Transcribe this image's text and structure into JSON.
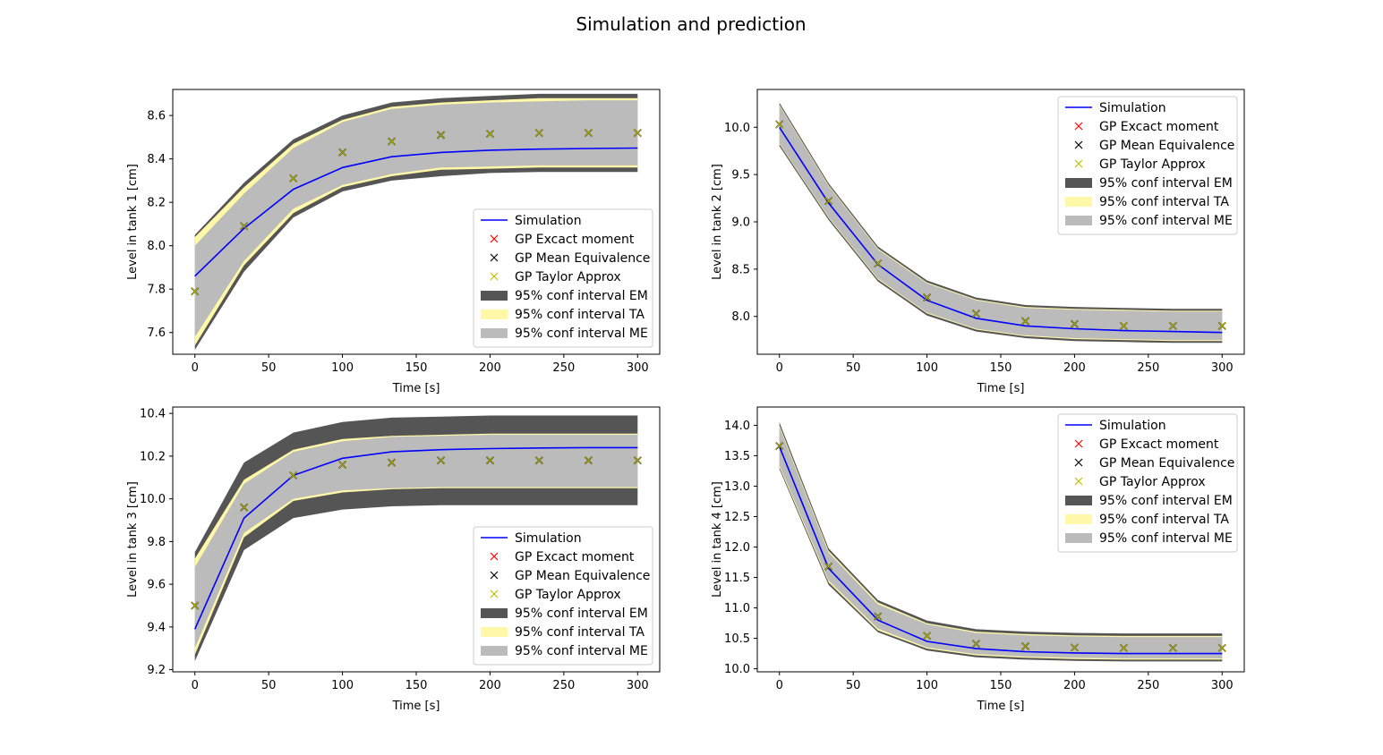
{
  "figure": {
    "suptitle": "Simulation and prediction"
  },
  "legend": {
    "entries": [
      {
        "label": "Simulation",
        "kind": "line",
        "color": "#0000ff"
      },
      {
        "label": "GP Excact moment",
        "kind": "marker",
        "color": "#ff0000"
      },
      {
        "label": "GP Mean Equivalence",
        "kind": "marker",
        "color": "#000000"
      },
      {
        "label": "GP Taylor Approx",
        "kind": "marker",
        "color": "#bfbf00"
      },
      {
        "label": "95% conf interval EM",
        "kind": "patch",
        "color": "#555555"
      },
      {
        "label": "95% conf interval TA",
        "kind": "patch",
        "color": "#fff8a8"
      },
      {
        "label": "95% conf interval ME",
        "kind": "patch",
        "color": "#bbbbbb"
      }
    ]
  },
  "chart_data": [
    {
      "type": "line",
      "xlabel": "Time [s]",
      "ylabel": "Level in tank 1 [cm]",
      "xlim": [
        -15,
        315
      ],
      "ylim": [
        7.5,
        8.72
      ],
      "xticks": [
        0,
        50,
        100,
        150,
        200,
        250,
        300
      ],
      "yticks": [
        7.6,
        7.8,
        8.0,
        8.2,
        8.4,
        8.6
      ],
      "ytick_labels": [
        "7.6",
        "7.8",
        "8.0",
        "8.2",
        "8.4",
        "8.6"
      ],
      "legend_position": "lower-right",
      "x": [
        0,
        33.3,
        66.7,
        100,
        133.3,
        166.7,
        200,
        233.3,
        266.7,
        300
      ],
      "simulation": [
        7.86,
        8.08,
        8.26,
        8.36,
        8.41,
        8.43,
        8.44,
        8.445,
        8.448,
        8.45
      ],
      "predictions": [
        7.79,
        8.09,
        8.31,
        8.43,
        8.48,
        8.51,
        8.515,
        8.52,
        8.52,
        8.52
      ],
      "band_em": {
        "lower": [
          7.52,
          7.88,
          8.13,
          8.25,
          8.3,
          8.32,
          8.335,
          8.34,
          8.34,
          8.34
        ],
        "upper": [
          8.05,
          8.29,
          8.49,
          8.6,
          8.66,
          8.68,
          8.69,
          8.7,
          8.7,
          8.7
        ]
      },
      "band_ta": {
        "lower": [
          7.54,
          7.91,
          8.15,
          8.27,
          8.32,
          8.35,
          8.355,
          8.36,
          8.36,
          8.36
        ],
        "upper": [
          8.04,
          8.27,
          8.47,
          8.58,
          8.64,
          8.66,
          8.67,
          8.68,
          8.68,
          8.68
        ]
      },
      "band_me": {
        "lower": [
          7.58,
          7.93,
          8.17,
          8.28,
          8.33,
          8.36,
          8.365,
          8.37,
          8.37,
          8.37
        ],
        "upper": [
          8.0,
          8.24,
          8.45,
          8.57,
          8.63,
          8.65,
          8.66,
          8.665,
          8.67,
          8.67
        ]
      }
    },
    {
      "type": "line",
      "xlabel": "Time [s]",
      "ylabel": "Level in tank 2 [cm]",
      "xlim": [
        -15,
        315
      ],
      "ylim": [
        7.6,
        10.4
      ],
      "xticks": [
        0,
        50,
        100,
        150,
        200,
        250,
        300
      ],
      "yticks": [
        8.0,
        8.5,
        9.0,
        9.5,
        10.0
      ],
      "ytick_labels": [
        "8.0",
        "8.5",
        "9.0",
        "9.5",
        "10.0"
      ],
      "legend_position": "upper-right",
      "x": [
        0,
        33.3,
        66.7,
        100,
        133.3,
        166.7,
        200,
        233.3,
        266.7,
        300
      ],
      "simulation": [
        10.0,
        9.2,
        8.55,
        8.17,
        7.98,
        7.9,
        7.87,
        7.85,
        7.84,
        7.83
      ],
      "predictions": [
        10.03,
        9.22,
        8.56,
        8.2,
        8.03,
        7.95,
        7.92,
        7.9,
        7.9,
        7.9
      ],
      "band_em": {
        "lower": [
          9.8,
          9.02,
          8.37,
          8.01,
          7.84,
          7.77,
          7.74,
          7.73,
          7.72,
          7.72
        ],
        "upper": [
          10.26,
          9.41,
          8.74,
          8.38,
          8.2,
          8.12,
          8.1,
          8.09,
          8.08,
          8.08
        ]
      },
      "band_ta": {
        "lower": [
          9.82,
          9.04,
          8.39,
          8.03,
          7.86,
          7.79,
          7.76,
          7.75,
          7.74,
          7.74
        ],
        "upper": [
          10.24,
          9.39,
          8.72,
          8.36,
          8.18,
          8.1,
          8.08,
          8.07,
          8.06,
          8.06
        ]
      },
      "band_me": {
        "lower": [
          9.83,
          9.05,
          8.4,
          8.04,
          7.87,
          7.8,
          7.77,
          7.76,
          7.75,
          7.75
        ],
        "upper": [
          10.23,
          9.38,
          8.71,
          8.35,
          8.17,
          8.09,
          8.07,
          8.06,
          8.05,
          8.05
        ]
      }
    },
    {
      "type": "line",
      "xlabel": "Time [s]",
      "ylabel": "Level in tank 3 [cm]",
      "xlim": [
        -15,
        315
      ],
      "ylim": [
        9.19,
        10.43
      ],
      "xticks": [
        0,
        50,
        100,
        150,
        200,
        250,
        300
      ],
      "yticks": [
        9.2,
        9.4,
        9.6,
        9.8,
        10.0,
        10.2,
        10.4
      ],
      "ytick_labels": [
        "9.2",
        "9.4",
        "9.6",
        "9.8",
        "10.0",
        "10.2",
        "10.4"
      ],
      "legend_position": "lower-right",
      "x": [
        0,
        33.3,
        66.7,
        100,
        133.3,
        166.7,
        200,
        233.3,
        266.7,
        300
      ],
      "simulation": [
        9.39,
        9.91,
        10.11,
        10.19,
        10.22,
        10.23,
        10.235,
        10.238,
        10.24,
        10.24
      ],
      "predictions": [
        9.5,
        9.96,
        10.11,
        10.16,
        10.17,
        10.18,
        10.18,
        10.18,
        10.18,
        10.18
      ],
      "band_em": {
        "lower": [
          9.24,
          9.76,
          9.91,
          9.95,
          9.965,
          9.97,
          9.97,
          9.97,
          9.97,
          9.97
        ],
        "upper": [
          9.75,
          10.17,
          10.31,
          10.36,
          10.38,
          10.385,
          10.39,
          10.39,
          10.39,
          10.39
        ]
      },
      "band_ta": {
        "lower": [
          9.27,
          9.82,
          9.99,
          10.03,
          10.045,
          10.05,
          10.05,
          10.05,
          10.05,
          10.05
        ],
        "upper": [
          9.72,
          10.09,
          10.23,
          10.28,
          10.295,
          10.3,
          10.305,
          10.305,
          10.305,
          10.305
        ]
      },
      "band_me": {
        "lower": [
          9.3,
          9.84,
          10.0,
          10.04,
          10.05,
          10.055,
          10.055,
          10.055,
          10.055,
          10.055
        ],
        "upper": [
          9.68,
          10.07,
          10.22,
          10.27,
          10.29,
          10.295,
          10.3,
          10.3,
          10.3,
          10.3
        ]
      }
    },
    {
      "type": "line",
      "xlabel": "Time [s]",
      "ylabel": "Level in tank 4 [cm]",
      "xlim": [
        -15,
        315
      ],
      "ylim": [
        9.95,
        14.3
      ],
      "xticks": [
        0,
        50,
        100,
        150,
        200,
        250,
        300
      ],
      "yticks": [
        10.0,
        10.5,
        11.0,
        11.5,
        12.0,
        12.5,
        13.0,
        13.5,
        14.0
      ],
      "ytick_labels": [
        "10.0",
        "10.5",
        "11.0",
        "11.5",
        "12.0",
        "12.5",
        "13.0",
        "13.5",
        "14.0"
      ],
      "legend_position": "upper-right",
      "x": [
        0,
        33.3,
        66.7,
        100,
        133.3,
        166.7,
        200,
        233.3,
        266.7,
        300
      ],
      "simulation": [
        13.65,
        11.65,
        10.8,
        10.45,
        10.33,
        10.28,
        10.26,
        10.25,
        10.25,
        10.25
      ],
      "predictions": [
        13.66,
        11.68,
        10.86,
        10.54,
        10.41,
        10.37,
        10.35,
        10.34,
        10.34,
        10.34
      ],
      "band_em": {
        "lower": [
          13.28,
          11.38,
          10.6,
          10.3,
          10.19,
          10.15,
          10.13,
          10.12,
          10.12,
          10.12
        ],
        "upper": [
          14.05,
          11.98,
          11.13,
          10.79,
          10.65,
          10.61,
          10.59,
          10.58,
          10.58,
          10.58
        ]
      },
      "band_ta": {
        "lower": [
          13.31,
          11.42,
          10.63,
          10.33,
          10.22,
          10.18,
          10.16,
          10.15,
          10.15,
          10.15
        ],
        "upper": [
          14.0,
          11.94,
          11.09,
          10.75,
          10.61,
          10.57,
          10.55,
          10.54,
          10.54,
          10.54
        ]
      },
      "band_me": {
        "lower": [
          13.34,
          11.45,
          10.66,
          10.35,
          10.24,
          10.2,
          10.18,
          10.17,
          10.17,
          10.17
        ],
        "upper": [
          13.97,
          11.91,
          11.06,
          10.73,
          10.59,
          10.55,
          10.53,
          10.52,
          10.52,
          10.52
        ]
      }
    }
  ]
}
